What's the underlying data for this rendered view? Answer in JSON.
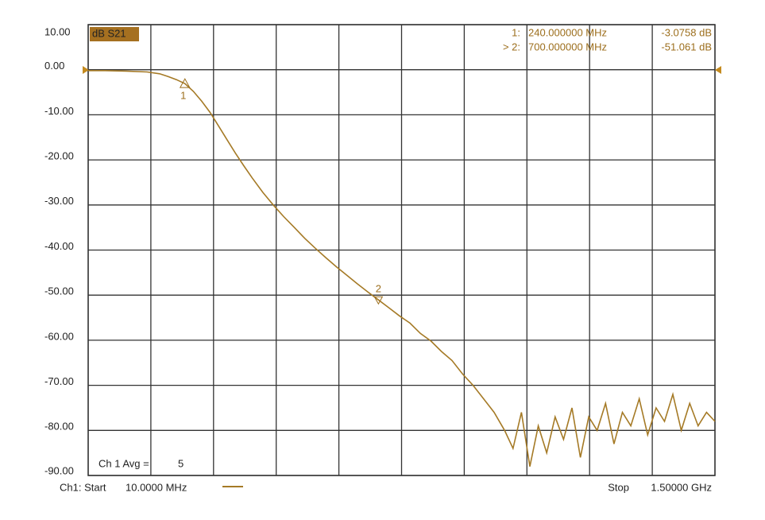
{
  "chart_data": {
    "type": "line",
    "title": "dB S21",
    "x": [
      10,
      50,
      100,
      150,
      180,
      200,
      220,
      240,
      260,
      280,
      300,
      320,
      340,
      360,
      380,
      400,
      425,
      450,
      475,
      500,
      525,
      550,
      575,
      600,
      625,
      650,
      675,
      700,
      725,
      750,
      775,
      800,
      825,
      850,
      875,
      900,
      925,
      950,
      975,
      1000,
      1020,
      1040,
      1060,
      1080,
      1100,
      1120,
      1140,
      1160,
      1180,
      1200,
      1220,
      1240,
      1260,
      1280,
      1300,
      1320,
      1340,
      1360,
      1380,
      1400,
      1420,
      1440,
      1460,
      1480,
      1500
    ],
    "series": [
      {
        "name": "S21",
        "color": "#a57a26",
        "values": [
          -0.2,
          -0.2,
          -0.3,
          -0.5,
          -0.9,
          -1.5,
          -2.2,
          -3.08,
          -4.8,
          -7,
          -9.5,
          -12.5,
          -15.5,
          -18.5,
          -21.3,
          -24,
          -27.2,
          -30,
          -32.6,
          -35,
          -37.4,
          -39.6,
          -41.7,
          -43.7,
          -45.6,
          -47.5,
          -49.3,
          -51.06,
          -52.8,
          -54.6,
          -56.2,
          -58.5,
          -60.2,
          -62.5,
          -64.5,
          -67.5,
          -70,
          -73,
          -76,
          -80,
          -84,
          -76,
          -88,
          -79,
          -85,
          -77,
          -82,
          -75,
          -86,
          -77,
          -80,
          -74,
          -83,
          -76,
          -79,
          -73,
          -81,
          -75,
          -78,
          -72,
          -80,
          -74,
          -79,
          -76,
          -78
        ]
      }
    ],
    "xlim": [
      10,
      1500
    ],
    "ylim": [
      -90,
      10
    ],
    "yticks": [
      {
        "value": 10,
        "label": "10.00"
      },
      {
        "value": 0,
        "label": "0.00"
      },
      {
        "value": -10,
        "label": "-10.00"
      },
      {
        "value": -20,
        "label": "-20.00"
      },
      {
        "value": -30,
        "label": "-30.00"
      },
      {
        "value": -40,
        "label": "-40.00"
      },
      {
        "value": -50,
        "label": "-50.00"
      },
      {
        "value": -60,
        "label": "-60.00"
      },
      {
        "value": -70,
        "label": "-70.00"
      },
      {
        "value": -80,
        "label": "-80.00"
      },
      {
        "value": -90,
        "label": "-90.00"
      }
    ],
    "grid": true,
    "markers": [
      {
        "tag": "1",
        "label": "1:",
        "x": 240,
        "x_label": "240.000000 MHz",
        "value": -3.0758,
        "value_label": "-3.0758 dB"
      },
      {
        "tag": "2",
        "label": "> 2:",
        "x": 700,
        "x_label": "700.000000 MHz",
        "value": -51.061,
        "value_label": "-51.061 dB"
      }
    ],
    "averaging": {
      "label": "Ch 1 Avg =",
      "count": 5
    },
    "footer": {
      "start_label": "Ch1: Start",
      "start": "10.0000 MHz",
      "stop_label": "Stop",
      "stop": "1.50000 GHz"
    }
  }
}
